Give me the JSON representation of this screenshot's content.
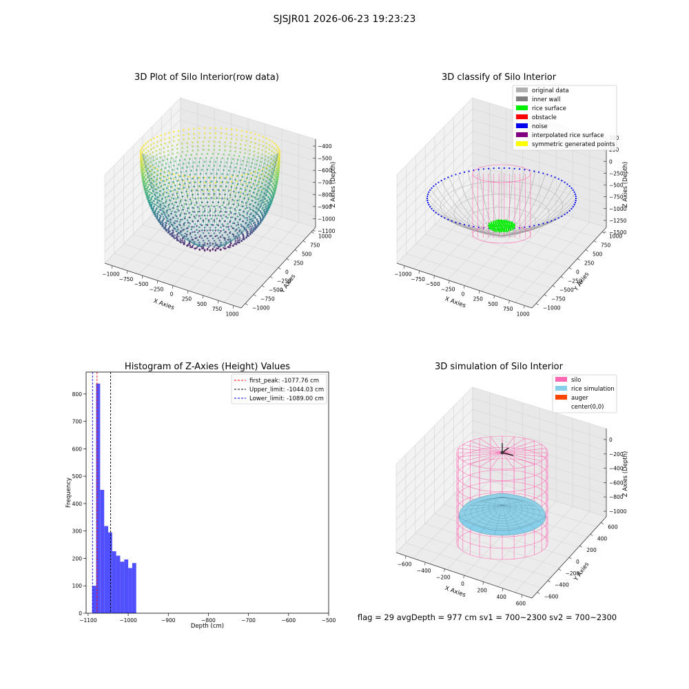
{
  "suptitle": "SJSJR01 2026-06-23 19:23:23",
  "status_line": "flag = 29  avgDepth = 977 cm  sv1 = 700~2300  sv2 = 700~2300",
  "colors": {
    "histogram_bar": "#5050ff",
    "first_peak": "#ff0000",
    "upper_limit": "#000000",
    "lower_limit": "#0000ff"
  },
  "chart_data": [
    {
      "type": "scatter3d",
      "title": "3D Plot of Silo Interior(row data)",
      "xlabel": "X Axies",
      "ylabel": "Y Axies",
      "zlabel": "Z Axies (Depth)",
      "x_ticks": [
        "−1000",
        "−750",
        "−500",
        "−250",
        "0",
        "250",
        "500",
        "750",
        "1000"
      ],
      "y_ticks": [
        "−1000",
        "−750",
        "−500",
        "−250",
        "0",
        "250",
        "500",
        "750",
        "1000"
      ],
      "z_ticks": [
        "−400",
        "−500",
        "−600",
        "−700",
        "−800",
        "−900",
        "−1000",
        "−1100"
      ],
      "colormap": "viridis",
      "xlim": [
        -1000,
        1000
      ],
      "ylim": [
        -1000,
        1000
      ],
      "zlim": [
        -1150,
        -380
      ]
    },
    {
      "type": "scatter3d",
      "title": "3D classify of Silo Interior",
      "xlabel": "X Axies",
      "ylabel": "Y Axies",
      "zlabel": "Z Axies (Depth)",
      "x_ticks": [
        "−1000",
        "−750",
        "−500",
        "−250",
        "0",
        "250",
        "500",
        "750",
        "1000"
      ],
      "y_ticks": [
        "−1000",
        "−750",
        "−500",
        "−250",
        "0",
        "250",
        "500",
        "750",
        "1000"
      ],
      "z_ticks": [
        "−1500",
        "−1250",
        "−1000",
        "−750",
        "−500",
        "−250",
        "0",
        "250",
        "500"
      ],
      "legend": [
        {
          "label": "original data",
          "color": "#b0b0b0"
        },
        {
          "label": "inner wall",
          "color": "#808080"
        },
        {
          "label": "rice surface",
          "color": "#00ee00"
        },
        {
          "label": "obstacle",
          "color": "#ff0000"
        },
        {
          "label": "noise",
          "color": "#0000ee"
        },
        {
          "label": "interpolated rice surface",
          "color": "#800080"
        },
        {
          "label": "symmetric generated points",
          "color": "#ffff00"
        }
      ],
      "legend_position": "top-right"
    },
    {
      "type": "bar",
      "title": "Histogram of Z-Axies (Height) Values",
      "xlabel": "Depth (cm)",
      "ylabel": "Frequency",
      "xlim": [
        -1105,
        -500
      ],
      "ylim": [
        0,
        880
      ],
      "x_ticks": [
        -1100,
        -1000,
        -900,
        -800,
        -700,
        -600,
        -500
      ],
      "y_ticks": [
        0,
        100,
        200,
        300,
        400,
        500,
        600,
        700,
        800
      ],
      "bin_edges": [
        -1090,
        -1080,
        -1070,
        -1060,
        -1050,
        -1040,
        -1030,
        -1020,
        -1010,
        -1000,
        -990,
        -980,
        -970
      ],
      "values": [
        100,
        838,
        450,
        318,
        295,
        226,
        210,
        188,
        196,
        165,
        183,
        0
      ],
      "lines": [
        {
          "label": "first_peak: -1077.76 cm",
          "x": -1077.76,
          "color": "#ff0000"
        },
        {
          "label": "Upper_limit: -1044.03 cm",
          "x": -1044.03,
          "color": "#000000"
        },
        {
          "label": "Lower_limit: -1089.00 cm",
          "x": -1089.0,
          "color": "#0000ff"
        }
      ],
      "legend_position": "top-right"
    },
    {
      "type": "surface3d",
      "title": "3D simulation of Silo Interior",
      "xlabel": "X Axies",
      "ylabel": "Y Axies",
      "zlabel": "Z Axies (Depth)",
      "x_ticks": [
        "−600",
        "−400",
        "−200",
        "0",
        "200",
        "400",
        "600"
      ],
      "y_ticks": [
        "−600",
        "−400",
        "−200",
        "0",
        "200",
        "400",
        "600"
      ],
      "z_ticks": [
        "0",
        "−200",
        "−400",
        "−600",
        "−800",
        "−1000"
      ],
      "legend": [
        {
          "label": "silo",
          "color": "#ff69b4"
        },
        {
          "label": "rice simulation",
          "color": "#87ceeb"
        },
        {
          "label": "auger",
          "color": "#ff4500"
        },
        {
          "label": "center(0,0)",
          "color": "#ffffff"
        }
      ],
      "legend_position": "top-right"
    }
  ]
}
